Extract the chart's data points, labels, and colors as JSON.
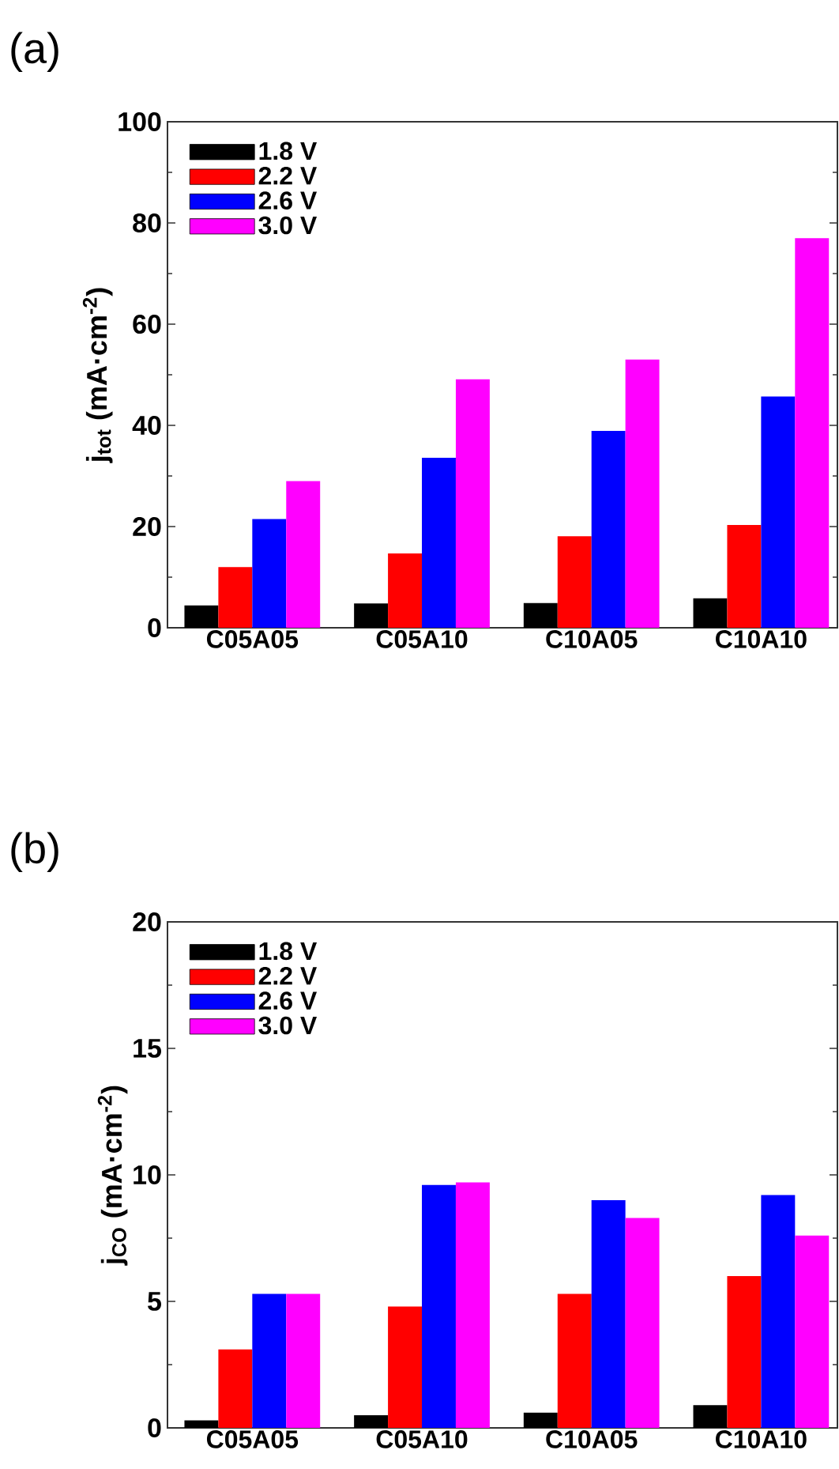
{
  "chart_data": [
    {
      "type": "bar",
      "title": "(a)",
      "ylabel": "j$_{tot}$ (mA·cm$^{-2}$)",
      "categories": [
        "C05A05",
        "C05A10",
        "C10A05",
        "C10A10"
      ],
      "series": [
        {
          "name": "1.8 V",
          "color": "#000000",
          "values": [
            4.4,
            4.8,
            4.9,
            5.8
          ]
        },
        {
          "name": "2.2 V",
          "color": "#ff0000",
          "values": [
            12.0,
            14.7,
            18.1,
            20.3
          ]
        },
        {
          "name": "2.6 V",
          "color": "#0000ff",
          "values": [
            21.5,
            33.6,
            38.9,
            45.7
          ]
        },
        {
          "name": "3.0 V",
          "color": "#ff00ff",
          "values": [
            29.0,
            49.1,
            53.0,
            77.0
          ]
        }
      ],
      "ylim": [
        0,
        100
      ],
      "yticks": [
        0,
        20,
        40,
        60,
        80,
        100
      ],
      "legend": "top left"
    },
    {
      "type": "bar",
      "title": "(b)",
      "ylabel": "j$_{CO}$ (mA·cm$^{-2}$)",
      "categories": [
        "C05A05",
        "C05A10",
        "C10A05",
        "C10A10"
      ],
      "series": [
        {
          "name": "1.8 V",
          "color": "#000000",
          "values": [
            0.3,
            0.5,
            0.6,
            0.9
          ]
        },
        {
          "name": "2.2 V",
          "color": "#ff0000",
          "values": [
            3.1,
            4.8,
            5.3,
            6.0
          ]
        },
        {
          "name": "2.6 V",
          "color": "#0000ff",
          "values": [
            5.3,
            9.6,
            9.0,
            9.2
          ]
        },
        {
          "name": "3.0 V",
          "color": "#ff00ff",
          "values": [
            5.3,
            9.7,
            8.3,
            7.6
          ]
        }
      ],
      "ylim": [
        0,
        20
      ],
      "yticks": [
        0,
        5,
        10,
        15,
        20
      ],
      "legend": "top left"
    }
  ]
}
